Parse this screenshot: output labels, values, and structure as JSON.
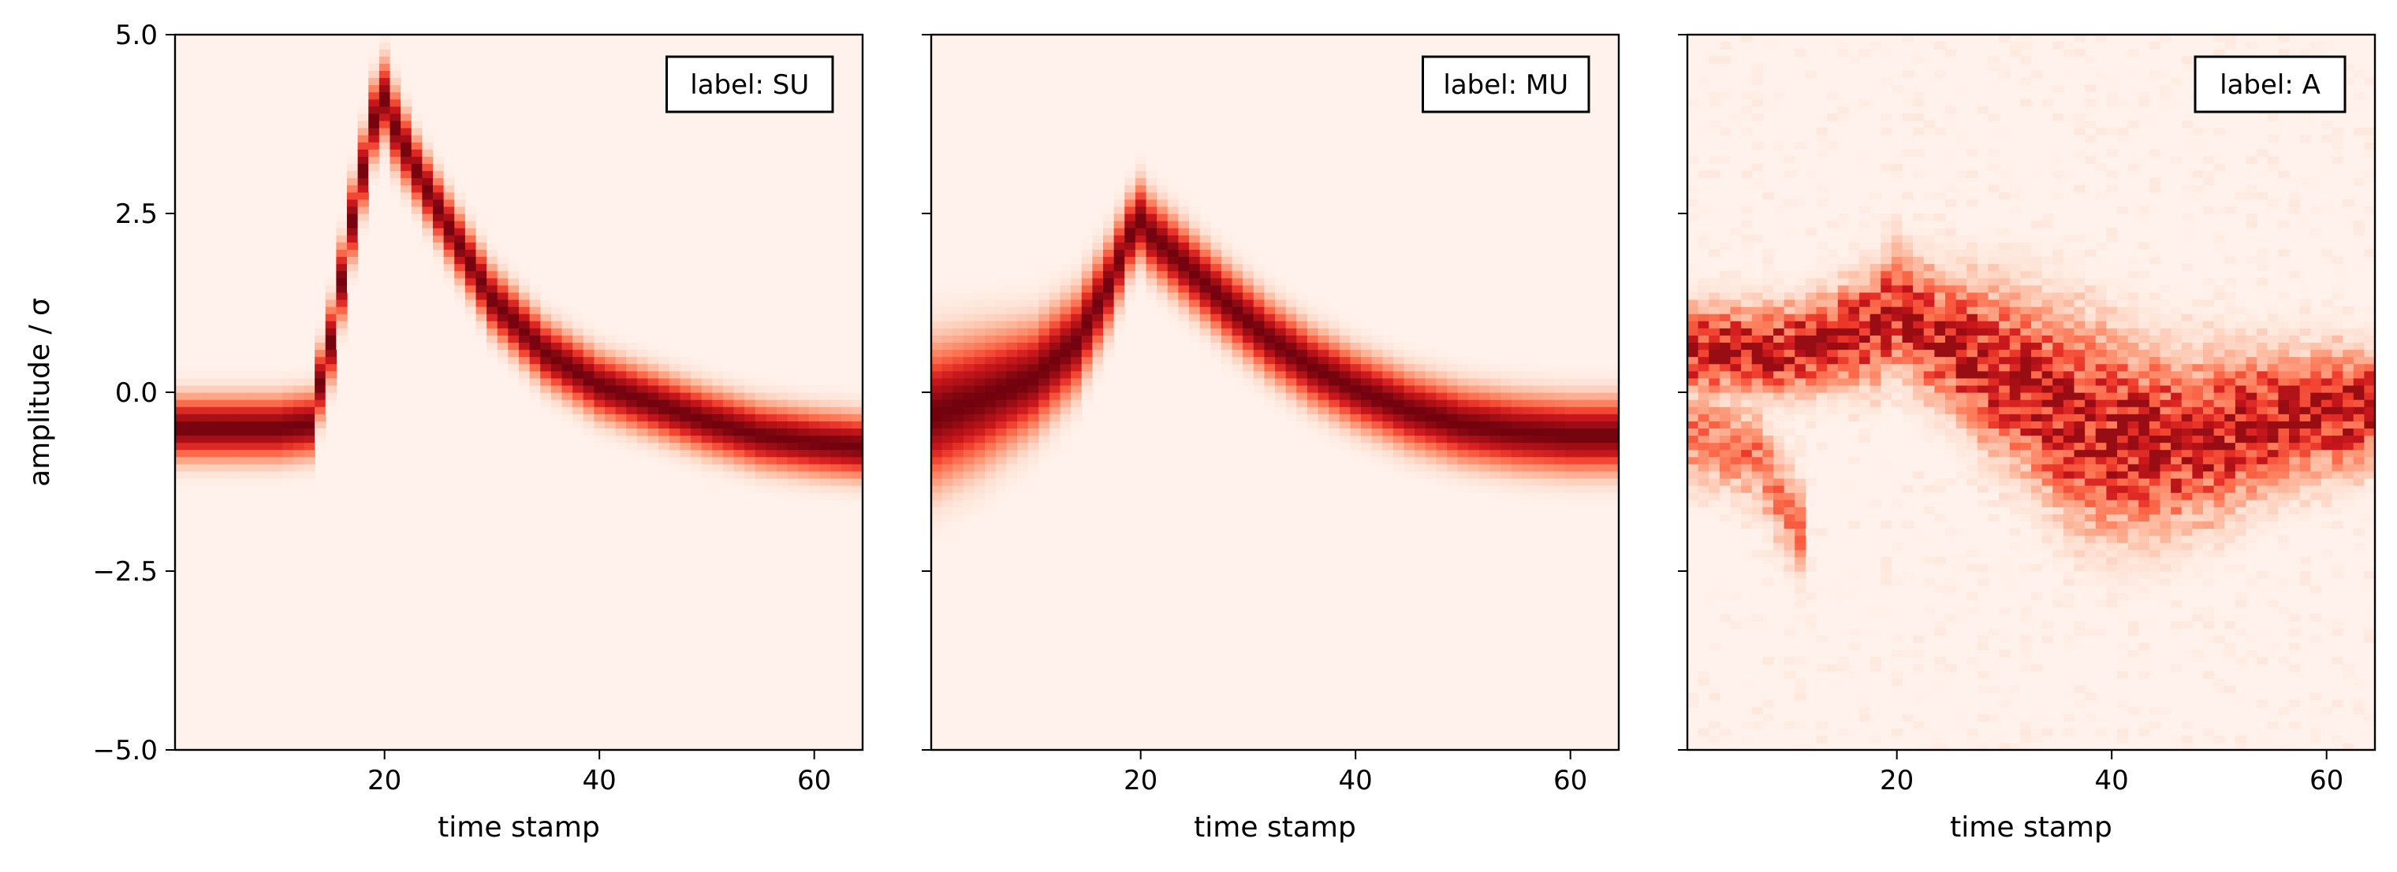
{
  "chart_data": [
    {
      "type": "heatmap",
      "panel_label": "label: SU",
      "xlabel": "time stamp",
      "ylabel": "amplitude / σ",
      "xlim": [
        1,
        64
      ],
      "ylim": [
        -5.0,
        5.0
      ],
      "xticks": [
        20,
        40,
        60
      ],
      "yticks": [
        -5.0,
        -2.5,
        0.0,
        2.5,
        5.0
      ],
      "ytick_labels": [
        "−5.0",
        "−2.5",
        "0.0",
        "2.5",
        "5.0"
      ],
      "colormap": "Reds",
      "trace_x": [
        1,
        5,
        10,
        13,
        15,
        17,
        19,
        20,
        21,
        23,
        26,
        30,
        35,
        40,
        45,
        50,
        55,
        60,
        64
      ],
      "trace_y": [
        -0.5,
        -0.5,
        -0.5,
        -0.45,
        0.7,
        2.4,
        3.8,
        4.1,
        3.7,
        3.1,
        2.3,
        1.3,
        0.55,
        0.1,
        -0.15,
        -0.4,
        -0.6,
        -0.7,
        -0.75
      ],
      "trace_width": [
        0.3,
        0.3,
        0.3,
        0.3,
        0.35,
        0.35,
        0.35,
        0.35,
        0.35,
        0.3,
        0.3,
        0.3,
        0.3,
        0.3,
        0.3,
        0.3,
        0.3,
        0.3,
        0.3
      ]
    },
    {
      "type": "heatmap",
      "panel_label": "label: MU",
      "xlabel": "time stamp",
      "ylabel": "",
      "xlim": [
        1,
        64
      ],
      "ylim": [
        -5.0,
        5.0
      ],
      "xticks": [
        20,
        40,
        60
      ],
      "yticks": [
        -5.0,
        -2.5,
        0.0,
        2.5,
        5.0
      ],
      "ytick_labels": [],
      "colormap": "Reds",
      "trace_x": [
        1,
        5,
        10,
        14,
        17,
        19,
        20,
        21,
        24,
        28,
        32,
        36,
        40,
        45,
        50,
        55,
        60,
        64
      ],
      "trace_y": [
        -0.3,
        -0.1,
        0.2,
        0.7,
        1.5,
        2.2,
        2.4,
        2.2,
        1.8,
        1.25,
        0.75,
        0.35,
        0.05,
        -0.25,
        -0.45,
        -0.55,
        -0.6,
        -0.6
      ],
      "trace_width": [
        0.65,
        0.6,
        0.5,
        0.45,
        0.4,
        0.35,
        0.35,
        0.35,
        0.35,
        0.35,
        0.35,
        0.35,
        0.35,
        0.35,
        0.35,
        0.35,
        0.35,
        0.35
      ]
    },
    {
      "type": "heatmap",
      "panel_label": "label: A",
      "xlabel": "time stamp",
      "ylabel": "",
      "xlim": [
        1,
        64
      ],
      "ylim": [
        -5.0,
        5.0
      ],
      "xticks": [
        20,
        40,
        60
      ],
      "yticks": [
        -5.0,
        -2.5,
        0.0,
        2.5,
        5.0
      ],
      "ytick_labels": [],
      "colormap": "Reds",
      "trace_x": [
        1,
        5,
        10,
        15,
        18,
        20,
        22,
        25,
        28,
        32,
        36,
        40,
        45,
        50,
        55,
        60,
        64
      ],
      "trace_y": [
        0.6,
        0.6,
        0.6,
        0.8,
        0.9,
        1.2,
        0.9,
        0.7,
        0.4,
        0.1,
        -0.3,
        -0.6,
        -0.7,
        -0.6,
        -0.4,
        -0.3,
        -0.2
      ],
      "trace_width": [
        0.4,
        0.4,
        0.4,
        0.45,
        0.5,
        0.55,
        0.55,
        0.6,
        0.7,
        0.8,
        0.9,
        0.9,
        0.8,
        0.7,
        0.6,
        0.55,
        0.5
      ],
      "secondary_trace_x": [
        1,
        4,
        7,
        9,
        11
      ],
      "secondary_trace_y": [
        -0.6,
        -0.7,
        -0.9,
        -1.4,
        -1.9
      ],
      "noise": true
    }
  ]
}
